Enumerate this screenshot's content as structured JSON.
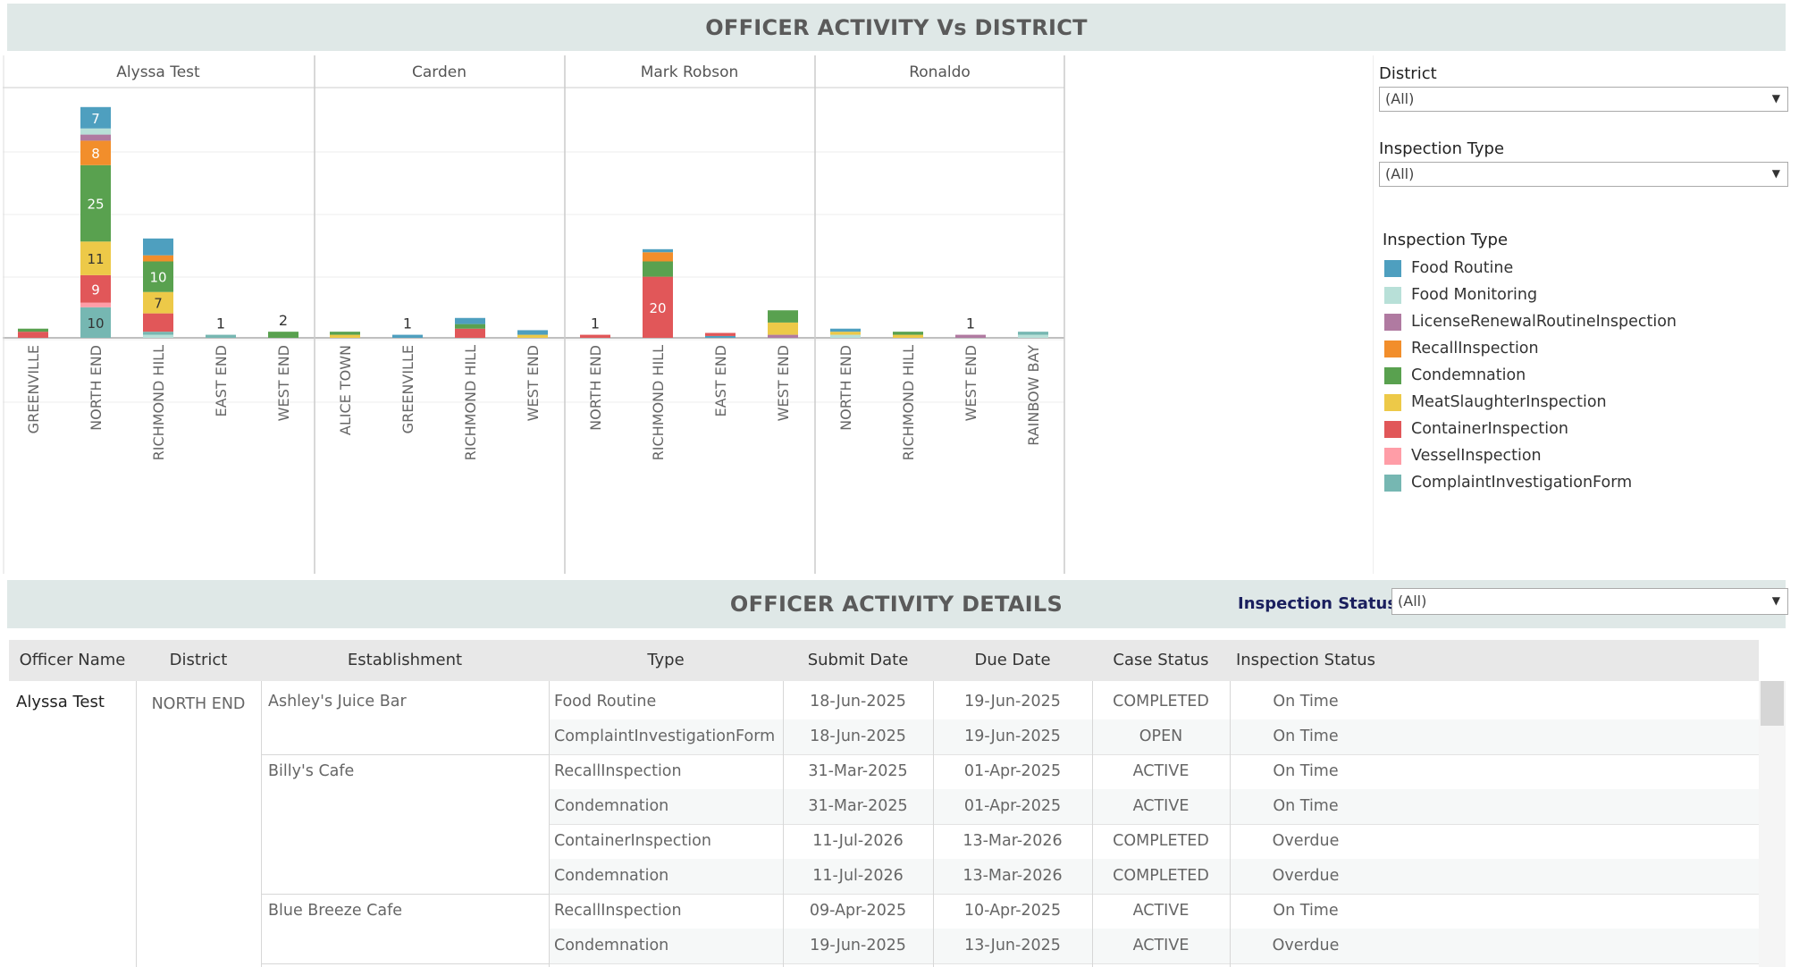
{
  "header": {
    "title": "OFFICER ACTIVITY Vs DISTRICT"
  },
  "details_header": {
    "title": "OFFICER ACTIVITY DETAILS"
  },
  "filters": {
    "district_label": "District",
    "district_value": "(All)",
    "inspection_type_label": "Inspection Type",
    "inspection_type_value": "(All)",
    "inspection_status_label": "Inspection Status:",
    "inspection_status_value": "(All)"
  },
  "legend": {
    "title": "Inspection Type",
    "items": [
      {
        "label": "Food Routine",
        "color": "#4e9fbf"
      },
      {
        "label": "Food Monitoring",
        "color": "#b8e0d8"
      },
      {
        "label": "LicenseRenewalRoutineInspection",
        "color": "#b07aa1"
      },
      {
        "label": "RecallInspection",
        "color": "#f28e2b"
      },
      {
        "label": "Condemnation",
        "color": "#59a14f"
      },
      {
        "label": "MeatSlaughterInspection",
        "color": "#edc948"
      },
      {
        "label": "ContainerInspection",
        "color": "#e15759"
      },
      {
        "label": "VesselInspection",
        "color": "#ff9da7"
      },
      {
        "label": "ComplaintInvestigationForm",
        "color": "#76b7b2"
      }
    ]
  },
  "chart_data": {
    "type": "bar",
    "stacked": true,
    "title": "OFFICER ACTIVITY Vs DISTRICT",
    "panels": [
      {
        "officer": "Alyssa Test",
        "bars": [
          {
            "district": "GREENVILLE",
            "segments": [
              [
                "ContainerInspection",
                2
              ],
              [
                "Condemnation",
                1
              ]
            ]
          },
          {
            "district": "NORTH END",
            "segments": [
              [
                "ComplaintInvestigationForm",
                10
              ],
              [
                "VesselInspection",
                1.5
              ],
              [
                "ContainerInspection",
                9
              ],
              [
                "MeatSlaughterInspection",
                11
              ],
              [
                "Condemnation",
                25
              ],
              [
                "RecallInspection",
                8
              ],
              [
                "LicenseRenewalRoutineInspection",
                2
              ],
              [
                "Food Monitoring",
                2
              ],
              [
                "Food Routine",
                7
              ]
            ],
            "labels": {
              "ComplaintInvestigationForm": "10",
              "ContainerInspection": "9",
              "MeatSlaughterInspection": "11",
              "Condemnation": "25",
              "RecallInspection": "8",
              "Food Routine": "7"
            }
          },
          {
            "district": "RICHMOND HILL",
            "segments": [
              [
                "Food Monitoring",
                1
              ],
              [
                "ComplaintInvestigationForm",
                1
              ],
              [
                "ContainerInspection",
                6
              ],
              [
                "MeatSlaughterInspection",
                7
              ],
              [
                "Condemnation",
                10
              ],
              [
                "RecallInspection",
                2
              ],
              [
                "Food Routine",
                5.5
              ]
            ],
            "labels": {
              "MeatSlaughterInspection": "7",
              "Condemnation": "10"
            }
          },
          {
            "district": "EAST END",
            "segments": [
              [
                "ComplaintInvestigationForm",
                1
              ]
            ],
            "total_label": "1"
          },
          {
            "district": "WEST END",
            "segments": [
              [
                "Condemnation",
                2
              ]
            ],
            "total_label": "2"
          }
        ]
      },
      {
        "officer": "Carden",
        "bars": [
          {
            "district": "ALICE TOWN",
            "segments": [
              [
                "MeatSlaughterInspection",
                1
              ],
              [
                "Condemnation",
                1
              ]
            ]
          },
          {
            "district": "GREENVILLE",
            "segments": [
              [
                "Food Routine",
                1
              ]
            ],
            "total_label": "1"
          },
          {
            "district": "RICHMOND HILL",
            "segments": [
              [
                "ContainerInspection",
                3
              ],
              [
                "Condemnation",
                1.5
              ],
              [
                "Food Routine",
                2
              ]
            ]
          },
          {
            "district": "WEST END",
            "segments": [
              [
                "MeatSlaughterInspection",
                1
              ],
              [
                "Food Routine",
                1.5
              ]
            ]
          }
        ]
      },
      {
        "officer": "Mark Robson",
        "bars": [
          {
            "district": "NORTH END",
            "segments": [
              [
                "ContainerInspection",
                1
              ]
            ],
            "total_label": "1"
          },
          {
            "district": "RICHMOND HILL",
            "segments": [
              [
                "ContainerInspection",
                20
              ],
              [
                "Condemnation",
                5
              ],
              [
                "RecallInspection",
                3
              ],
              [
                "Food Routine",
                1
              ]
            ],
            "labels": {
              "ContainerInspection": "20"
            }
          },
          {
            "district": "EAST END",
            "segments": [
              [
                "Food Routine",
                0.6
              ],
              [
                "ContainerInspection",
                1
              ]
            ]
          },
          {
            "district": "WEST END",
            "segments": [
              [
                "LicenseRenewalRoutineInspection",
                1
              ],
              [
                "MeatSlaughterInspection",
                4
              ],
              [
                "Condemnation",
                4
              ]
            ]
          }
        ]
      },
      {
        "officer": "Ronaldo",
        "bars": [
          {
            "district": "NORTH END",
            "segments": [
              [
                "Food Monitoring",
                1
              ],
              [
                "MeatSlaughterInspection",
                1
              ],
              [
                "Food Routine",
                1
              ]
            ]
          },
          {
            "district": "RICHMOND HILL",
            "segments": [
              [
                "MeatSlaughterInspection",
                1
              ],
              [
                "Condemnation",
                1
              ]
            ]
          },
          {
            "district": "WEST END",
            "segments": [
              [
                "LicenseRenewalRoutineInspection",
                1
              ]
            ],
            "total_label": "1"
          },
          {
            "district": "RAINBOW BAY",
            "segments": [
              [
                "Food Monitoring",
                1
              ],
              [
                "ComplaintInvestigationForm",
                1
              ]
            ]
          }
        ]
      }
    ],
    "ylim": [
      0,
      38
    ],
    "grid": true
  },
  "table": {
    "columns": [
      "Officer Name",
      "District",
      "Establishment",
      "Type",
      "Submit Date",
      "Due Date",
      "Case Status",
      "Inspection Status"
    ],
    "officer": "Alyssa Test",
    "district": "NORTH END",
    "establishments": [
      {
        "name": "Ashley's Juice Bar",
        "rows": 2
      },
      {
        "name": "Billy's Cafe",
        "rows": 4
      },
      {
        "name": "Blue Breeze Cafe",
        "rows": 2
      }
    ],
    "rows": [
      {
        "type": "Food Routine",
        "submit": "18-Jun-2025",
        "due": "19-Jun-2025",
        "case": "COMPLETED",
        "status": "On Time"
      },
      {
        "type": "ComplaintInvestigationForm",
        "submit": "18-Jun-2025",
        "due": "19-Jun-2025",
        "case": "OPEN",
        "status": "On Time"
      },
      {
        "type": "RecallInspection",
        "submit": "31-Mar-2025",
        "due": "01-Apr-2025",
        "case": "ACTIVE",
        "status": "On Time"
      },
      {
        "type": "Condemnation",
        "submit": "31-Mar-2025",
        "due": "01-Apr-2025",
        "case": "ACTIVE",
        "status": "On Time"
      },
      {
        "type": "ContainerInspection",
        "submit": "11-Jul-2026",
        "due": "13-Mar-2026",
        "case": "COMPLETED",
        "status": "Overdue"
      },
      {
        "type": "Condemnation",
        "submit": "11-Jul-2026",
        "due": "13-Mar-2026",
        "case": "COMPLETED",
        "status": "Overdue"
      },
      {
        "type": "RecallInspection",
        "submit": "09-Apr-2025",
        "due": "10-Apr-2025",
        "case": "ACTIVE",
        "status": "On Time"
      },
      {
        "type": "Condemnation",
        "submit": "19-Jun-2025",
        "due": "13-Jun-2025",
        "case": "ACTIVE",
        "status": "Overdue"
      }
    ]
  }
}
